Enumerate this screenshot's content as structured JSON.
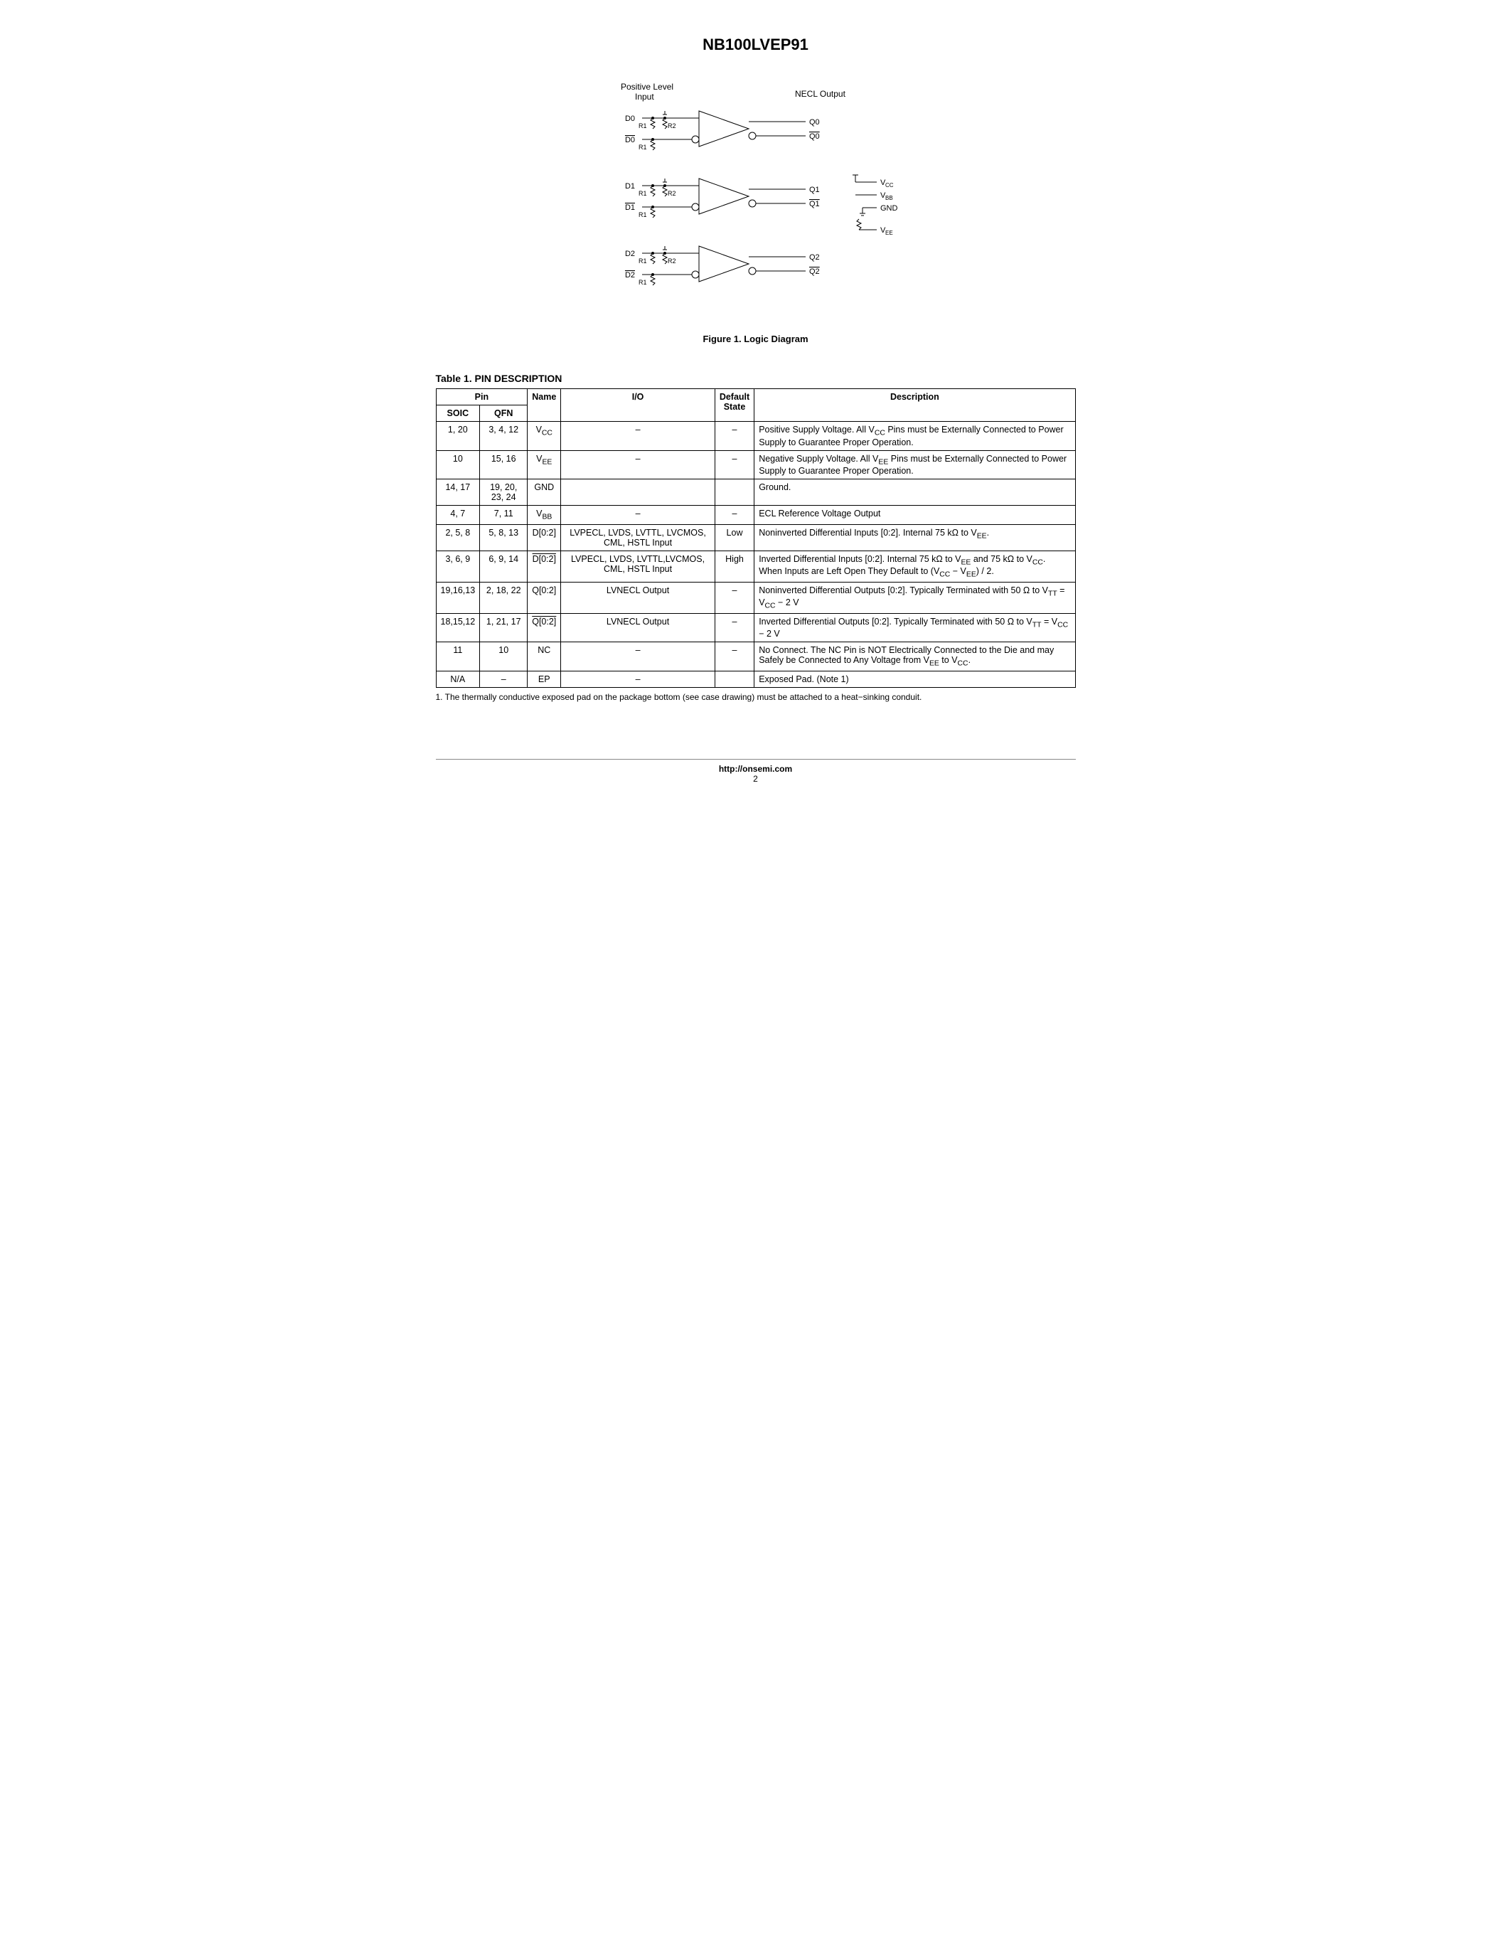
{
  "part_title": "NB100LVEP91",
  "diagram": {
    "top_left_label": "Positive Level\nInput",
    "top_right_label": "NECL Output",
    "blocks": [
      {
        "d": "D0",
        "dbar": "D0",
        "q": "Q0",
        "qbar": "Q0",
        "r1a": "R1",
        "r1b": "R1",
        "r2": "R2"
      },
      {
        "d": "D1",
        "dbar": "D1",
        "q": "Q1",
        "qbar": "Q1",
        "r1a": "R1",
        "r1b": "R1",
        "r2": "R2"
      },
      {
        "d": "D2",
        "dbar": "D2",
        "q": "Q2",
        "qbar": "Q2",
        "r1a": "R1",
        "r1b": "R1",
        "r2": "R2"
      }
    ],
    "rails": {
      "vcc": "VCC",
      "vbb": "VBB",
      "gnd": "GND",
      "vee": "VEE"
    },
    "caption": "Figure 1. Logic Diagram"
  },
  "table": {
    "title": "Table 1. PIN DESCRIPTION",
    "header": {
      "pin_group": "Pin",
      "soic": "SOIC",
      "qfn": "QFN",
      "name": "Name",
      "io": "I/O",
      "default": "Default\nState",
      "description": "Description"
    },
    "rows": [
      {
        "soic": "1, 20",
        "qfn": "3, 4, 12",
        "name_html": "V<sub>CC</sub>",
        "io": "–",
        "default": "–",
        "desc_html": "Positive Supply Voltage. All V<sub>CC</sub> Pins must be Externally Connected to Power Supply to Guarantee Proper Operation."
      },
      {
        "soic": "10",
        "qfn": "15, 16",
        "name_html": "V<sub>EE</sub>",
        "io": "–",
        "default": "–",
        "desc_html": "Negative Supply Voltage. All V<sub>EE</sub> Pins must be Externally Connected to Power Supply to Guarantee Proper Operation."
      },
      {
        "soic": "14, 17",
        "qfn": "19, 20, 23, 24",
        "name_html": "GND",
        "io": "",
        "default": "",
        "desc_html": "Ground."
      },
      {
        "soic": "4, 7",
        "qfn": "7, 11",
        "name_html": "V<sub>BB</sub>",
        "io": "–",
        "default": "–",
        "desc_html": "ECL Reference Voltage Output"
      },
      {
        "soic": "2, 5, 8",
        "qfn": "5, 8, 13",
        "name_html": "D[0:2]",
        "io": "LVPECL, LVDS, LVTTL, LVCMOS, CML, HSTL Input",
        "default": "Low",
        "desc_html": "Noninverted Differential Inputs [0:2]. Internal 75 kΩ to V<sub>EE</sub>."
      },
      {
        "soic": "3, 6, 9",
        "qfn": "6, 9, 14",
        "name_html": "<span class=\"ov\">D[0:2]</span>",
        "io": "LVPECL, LVDS, LVTTL,LVCMOS, CML, HSTL Input",
        "default": "High",
        "desc_html": "Inverted Differential Inputs [0:2]. Internal 75 kΩ to V<sub>EE</sub> and 75 kΩ to V<sub>CC</sub>. When Inputs are Left Open They Default to (V<sub>CC</sub> − V<sub>EE</sub>) / 2."
      },
      {
        "soic": "19,16,13",
        "qfn": "2, 18, 22",
        "name_html": "Q[0:2]",
        "io": "LVNECL Output",
        "default": "–",
        "desc_html": "Noninverted Differential Outputs [0:2]. Typically Terminated with 50 Ω to V<sub>TT</sub> = V<sub>CC</sub> − 2 V"
      },
      {
        "soic": "18,15,12",
        "qfn": "1, 21, 17",
        "name_html": "<span class=\"ov\">Q[0:2]</span>",
        "io": "LVNECL Output",
        "default": "–",
        "desc_html": "Inverted Differential Outputs [0:2]. Typically Terminated with 50 Ω to V<sub>TT</sub> = V<sub>CC</sub> − 2 V"
      },
      {
        "soic": "11",
        "qfn": "10",
        "name_html": "NC",
        "io": "–",
        "default": "–",
        "desc_html": "No Connect. The NC Pin is NOT Electrically Connected to the Die and may Safely be Connected to Any Voltage from V<sub>EE</sub> to V<sub>CC</sub>."
      },
      {
        "soic": "N/A",
        "qfn": "–",
        "name_html": "EP",
        "io": "–",
        "default": "",
        "desc_html": "Exposed Pad. (Note 1)"
      }
    ],
    "note": "1.  The thermally conductive exposed pad on the package bottom (see case drawing) must be attached to a heat−sinking conduit."
  },
  "footer": {
    "url": "http://onsemi.com",
    "page": "2"
  }
}
